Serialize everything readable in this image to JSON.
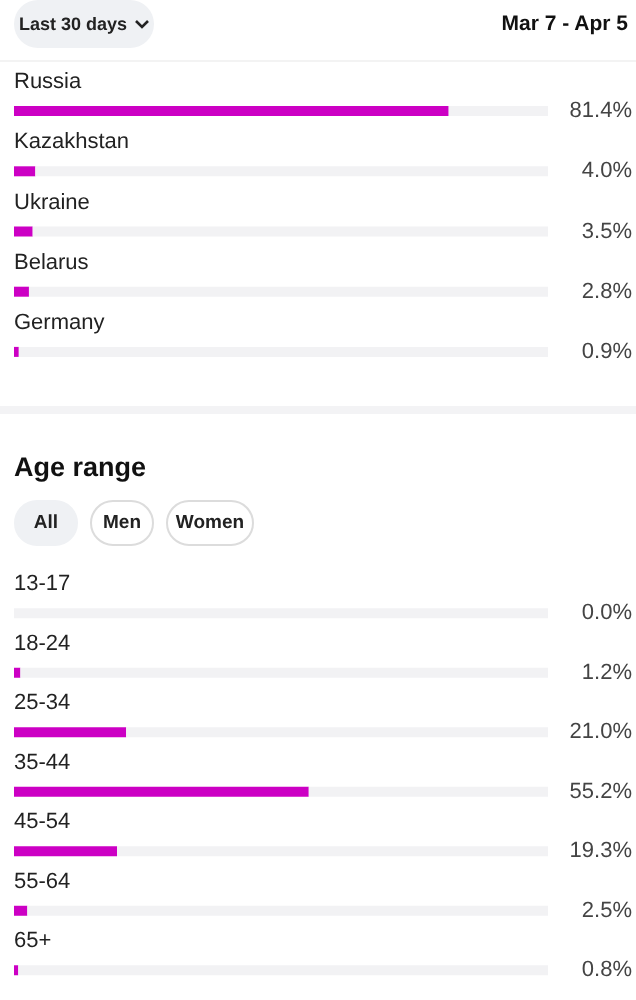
{
  "chart_data": [
    {
      "type": "bar",
      "orientation": "horizontal",
      "stacked": true,
      "annotations": [
        "Last 30 days",
        "Mar 7 - Apr 5"
      ],
      "categories": [
        "Russia",
        "Kazakhstan",
        "Ukraine",
        "Belarus",
        "Germany"
      ],
      "xlim": [
        0,
        100
      ],
      "tick_labels": "y",
      "series": [
        {
          "color": "#cc00c4",
          "values": [
            81.4,
            4.0,
            3.5,
            2.8,
            0.9
          ],
          "value_labels": [
            "81.4%",
            "4.0%",
            "3.5%",
            "2.8%",
            "0.9%"
          ]
        },
        {
          "color": "#f2f2f4",
          "values": [
            18.6,
            96.0,
            96.5,
            97.2,
            99.1
          ]
        }
      ]
    },
    {
      "type": "bar",
      "orientation": "horizontal",
      "stacked": true,
      "title": "Age range",
      "annotations": [
        "All",
        "Men",
        "Women"
      ],
      "categories": [
        "13-17",
        "18-24",
        "25-34",
        "35-44",
        "45-54",
        "55-64",
        "65+"
      ],
      "xlim": [
        0,
        100
      ],
      "tick_labels": "y",
      "series": [
        {
          "color": "#cc00c4",
          "values": [
            0.0,
            1.2,
            21.0,
            55.2,
            19.3,
            2.5,
            0.8
          ],
          "value_labels": [
            "0.0%",
            "1.2%",
            "21.0%",
            "55.2%",
            "19.3%",
            "2.5%",
            "0.8%"
          ]
        },
        {
          "color": "#f2f2f4",
          "values": [
            100.0,
            98.8,
            79.0,
            44.8,
            80.7,
            97.5,
            99.2
          ]
        }
      ]
    }
  ]
}
